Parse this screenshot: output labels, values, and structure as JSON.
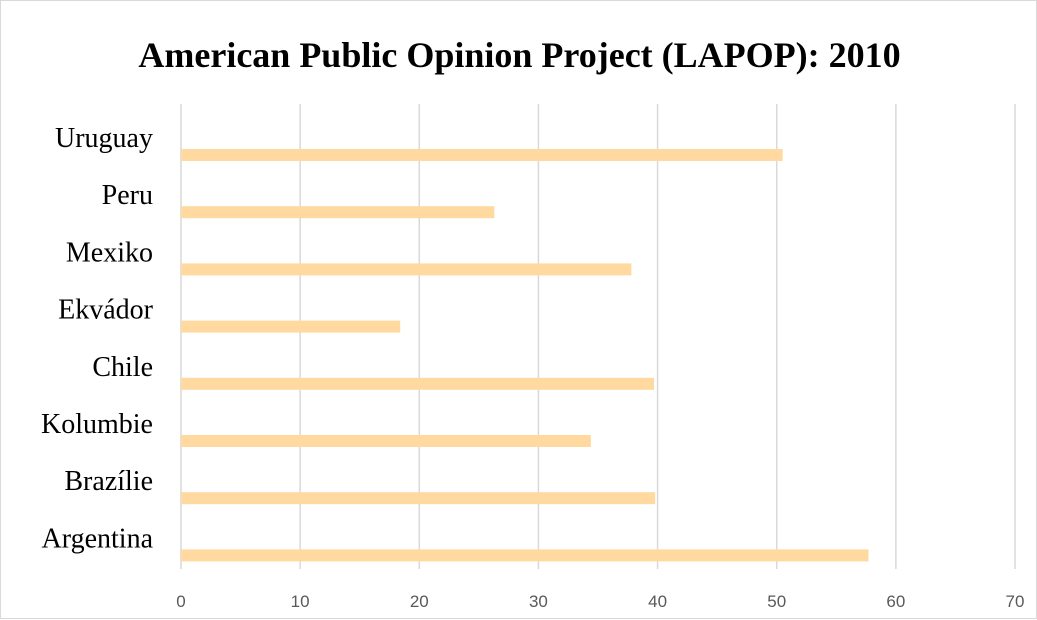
{
  "chart_data": {
    "type": "bar",
    "orientation": "horizontal",
    "title": "American Public Opinion Project (LAPOP): 2010",
    "xlabel": "",
    "ylabel": "",
    "categories": [
      "Argentina",
      "Brazílie",
      "Kolumbie",
      "Chile",
      "Ekvádor",
      "Mexiko",
      "Peru",
      "Uruguay"
    ],
    "values": [
      57.7,
      39.8,
      34.4,
      39.7,
      18.4,
      37.8,
      26.3,
      50.5
    ],
    "xlim": [
      0,
      70
    ],
    "xticks": [
      0,
      10,
      20,
      30,
      40,
      50,
      60,
      70
    ],
    "grid": "vertical",
    "legend": "none",
    "bar_color": "#ffd9a0",
    "grid_color": "#d9d9d9",
    "tick_label_color": "#595959"
  }
}
